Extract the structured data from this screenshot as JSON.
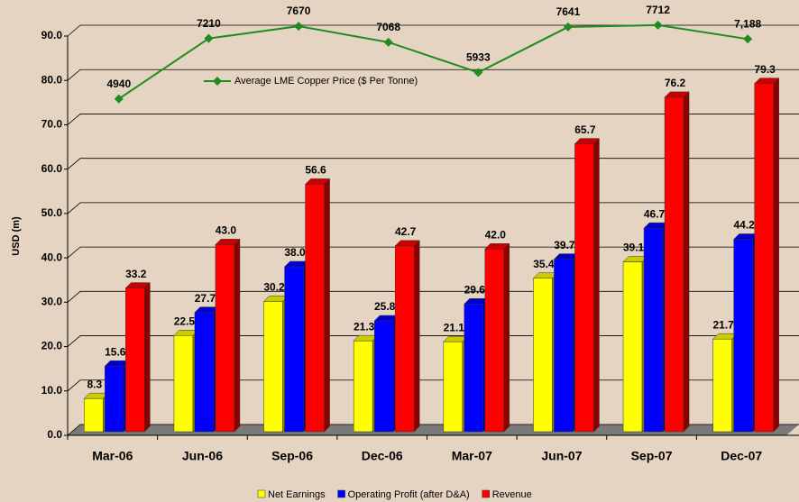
{
  "chart_data": {
    "type": "bar",
    "y_label": "USD (m)",
    "categories": [
      "Mar-06",
      "Jun-06",
      "Sep-06",
      "Dec-06",
      "Mar-07",
      "Jun-07",
      "Sep-07",
      "Dec-07"
    ],
    "series": [
      {
        "name": "Net Earnings",
        "color": "#ffff00",
        "values": [
          8.3,
          22.5,
          30.2,
          21.3,
          21.1,
          35.4,
          39.1,
          21.7
        ],
        "value_labels": [
          "8.3",
          "22.5",
          "30.2",
          "21.3",
          "21.1",
          "35.4",
          "39.1",
          "21.7"
        ]
      },
      {
        "name": "Operating Profit (after D&A)",
        "color": "#0000ff",
        "values": [
          15.6,
          27.7,
          38.0,
          25.8,
          29.6,
          39.7,
          46.7,
          44.2
        ],
        "value_labels": [
          "15.6",
          "27.7",
          "38.0",
          "25.8",
          "29.6",
          "39.7",
          "46.7",
          "44.2"
        ]
      },
      {
        "name": "Revenue",
        "color": "#ff0000",
        "values": [
          33.2,
          43.0,
          56.6,
          42.7,
          42.0,
          65.7,
          76.2,
          79.3
        ],
        "value_labels": [
          "33.2",
          "43.0",
          "56.6",
          "42.7",
          "42.0",
          "65.7",
          "76.2",
          "79.3"
        ]
      },
      {
        "name": "Average LME Copper Price ($ Per Tonne)",
        "type": "line",
        "axis": "y2",
        "color": "#1e8c1e",
        "values": [
          4940,
          7210,
          7670,
          7068,
          5933,
          7641,
          7712,
          7188
        ],
        "value_labels": [
          "4940",
          "7210",
          "7670",
          "7068",
          "5933",
          "7641",
          "7712",
          "7,188"
        ]
      }
    ],
    "ylim": [
      0,
      90
    ],
    "yticks": [
      {
        "value": 0,
        "label": "0.0"
      },
      {
        "value": 10,
        "label": "10.0"
      },
      {
        "value": 20,
        "label": "20.0"
      },
      {
        "value": 30,
        "label": "30.0"
      },
      {
        "value": 40,
        "label": "40.0"
      },
      {
        "value": 50,
        "label": "50.0"
      },
      {
        "value": 60,
        "label": "60.0"
      },
      {
        "value": 70,
        "label": "70.0"
      },
      {
        "value": 80,
        "label": "80.0"
      },
      {
        "value": 90,
        "label": "90.0"
      }
    ],
    "y2lim": [
      -7700,
      7300
    ],
    "grid": true
  }
}
